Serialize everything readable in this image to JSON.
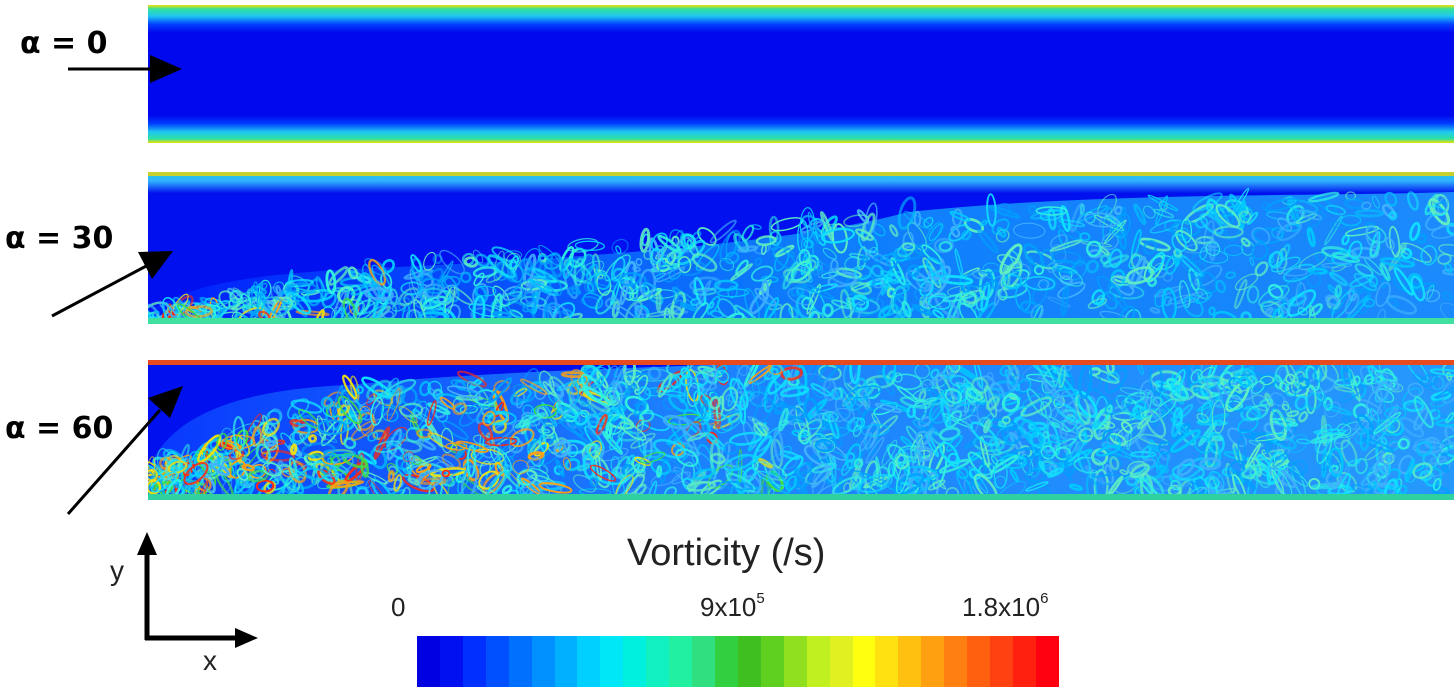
{
  "panels": [
    {
      "label": "α = 0"
    },
    {
      "label": "α = 30"
    },
    {
      "label": "α = 60"
    }
  ],
  "colorbar": {
    "title": "Vorticity (/s)",
    "tick_min": "0",
    "tick_mid_base": "9x10",
    "tick_mid_exp": "5",
    "tick_max_base": "1.8x10",
    "tick_max_exp": "6",
    "colors": [
      "#0000e0",
      "#0010f0",
      "#0030ff",
      "#0050ff",
      "#0070ff",
      "#0090ff",
      "#00b0ff",
      "#00d0ff",
      "#00e8f8",
      "#00f0e0",
      "#10f0c0",
      "#20f0a0",
      "#30e080",
      "#30d040",
      "#40c020",
      "#60d020",
      "#90e020",
      "#c0f020",
      "#e0f020",
      "#ffff10",
      "#ffe010",
      "#ffc010",
      "#ffa010",
      "#ff8010",
      "#ff6010",
      "#ff4010",
      "#ff2010",
      "#ff0010"
    ]
  },
  "axes": {
    "x_label": "x",
    "y_label": "y"
  }
}
